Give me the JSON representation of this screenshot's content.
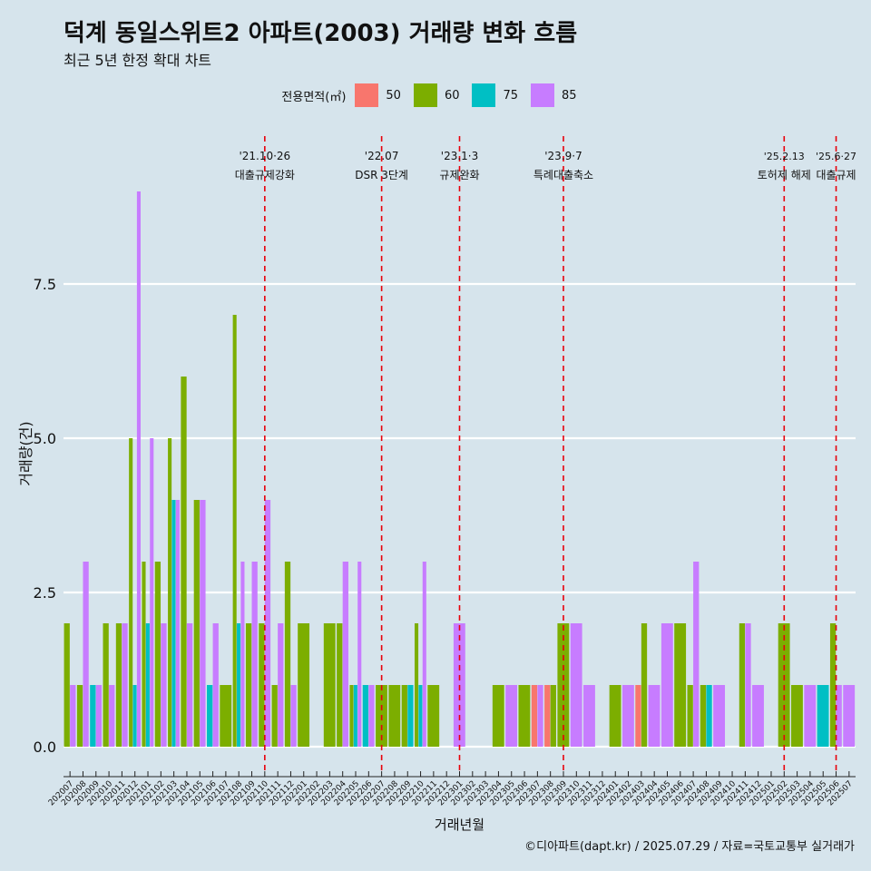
{
  "title": "덕계 동일스위트2 아파트(2003) 거래량 변화 흐름",
  "subtitle": "최근 5년 한정 확대 차트",
  "caption": "©디아파트(dapt.kr) / 2025.07.29 / 자료=국토교통부 실거래가",
  "legend": {
    "title": "전용면적(㎡)",
    "items": [
      {
        "label": "50",
        "color": "#f8766d"
      },
      {
        "label": "60",
        "color": "#7cae00"
      },
      {
        "label": "75",
        "color": "#00bfc4"
      },
      {
        "label": "85",
        "color": "#c77cff"
      }
    ]
  },
  "chart_data": {
    "type": "bar",
    "title": "덕계 동일스위트2 아파트(2003) 거래량 변화 흐름",
    "xlabel": "거래년월",
    "ylabel": "거래량(건)",
    "ylim": [
      -0.4,
      9.6
    ],
    "yticks": [
      "0.0",
      "2.5",
      "5.0",
      "7.5"
    ],
    "ytick_values": [
      0,
      2.5,
      5,
      7.5
    ],
    "categories": [
      "202007",
      "202008",
      "202009",
      "202010",
      "202011",
      "202012",
      "202101",
      "202102",
      "202103",
      "202104",
      "202105",
      "202106",
      "202107",
      "202108",
      "202109",
      "202110",
      "202111",
      "202112",
      "202201",
      "202202",
      "202203",
      "202204",
      "202205",
      "202206",
      "202207",
      "202208",
      "202209",
      "202210",
      "202211",
      "202212",
      "202301",
      "202302",
      "202303",
      "202304",
      "202305",
      "202306",
      "202307",
      "202308",
      "202309",
      "202310",
      "202311",
      "202312",
      "202401",
      "202402",
      "202403",
      "202404",
      "202405",
      "202406",
      "202407",
      "202408",
      "202409",
      "202410",
      "202411",
      "202412",
      "202501",
      "202502",
      "202503",
      "202504",
      "202505",
      "202506",
      "202507"
    ],
    "series": [
      {
        "name": "50",
        "color": "#f8766d",
        "values": [
          0,
          0,
          0,
          0,
          0,
          0,
          0,
          0,
          0,
          0,
          0,
          0,
          0,
          0,
          0,
          0,
          0,
          0,
          0,
          0,
          0,
          0,
          0,
          0,
          0,
          0,
          0,
          0,
          0,
          0,
          0,
          0,
          0,
          0,
          0,
          0,
          1,
          1,
          0,
          0,
          0,
          0,
          0,
          0,
          1,
          0,
          0,
          0,
          0,
          0,
          0,
          0,
          0,
          0,
          0,
          0,
          0,
          0,
          0,
          0,
          0
        ]
      },
      {
        "name": "60",
        "color": "#7cae00",
        "values": [
          2,
          1,
          0,
          2,
          2,
          5,
          3,
          3,
          5,
          6,
          4,
          0,
          1,
          7,
          2,
          2,
          1,
          3,
          2,
          0,
          2,
          2,
          1,
          0,
          1,
          1,
          1,
          2,
          1,
          0,
          0,
          0,
          0,
          1,
          0,
          1,
          0,
          1,
          2,
          0,
          0,
          0,
          1,
          0,
          2,
          0,
          0,
          2,
          1,
          1,
          0,
          0,
          2,
          0,
          0,
          2,
          1,
          0,
          0,
          2,
          0
        ]
      },
      {
        "name": "75",
        "color": "#00bfc4",
        "values": [
          0,
          0,
          1,
          0,
          0,
          1,
          2,
          0,
          4,
          0,
          0,
          1,
          0,
          2,
          0,
          0,
          0,
          0,
          0,
          0,
          0,
          0,
          1,
          1,
          0,
          0,
          1,
          1,
          0,
          0,
          0,
          0,
          0,
          0,
          0,
          0,
          0,
          0,
          0,
          0,
          0,
          0,
          0,
          0,
          0,
          0,
          0,
          0,
          0,
          1,
          0,
          0,
          0,
          0,
          0,
          0,
          0,
          0,
          1,
          0,
          0
        ]
      },
      {
        "name": "85",
        "color": "#c77cff",
        "values": [
          1,
          3,
          1,
          1,
          2,
          9,
          5,
          2,
          4,
          2,
          4,
          2,
          0,
          3,
          3,
          4,
          2,
          1,
          0,
          0,
          0,
          3,
          3,
          1,
          0,
          0,
          0,
          3,
          0,
          0,
          2,
          0,
          0,
          0,
          1,
          0,
          1,
          0,
          0,
          2,
          1,
          0,
          0,
          1,
          0,
          1,
          2,
          0,
          3,
          0,
          1,
          0,
          2,
          1,
          0,
          0,
          0,
          1,
          0,
          1,
          1
        ]
      }
    ],
    "events": [
      {
        "index": 15,
        "date": "'21.10·26",
        "label": "대출규제강화"
      },
      {
        "index": 24,
        "date": "'22.07",
        "label": "DSR 3단계"
      },
      {
        "index": 30,
        "date": "'23.1·3",
        "label": "규제완화"
      },
      {
        "index": 38,
        "date": "'23.9·7",
        "label": "특례대출축소"
      },
      {
        "index": 55,
        "date": "'25.2.13",
        "label": "토허제 해제"
      },
      {
        "index": 59,
        "date": "'25.6·27",
        "label": "대출규제"
      }
    ]
  }
}
